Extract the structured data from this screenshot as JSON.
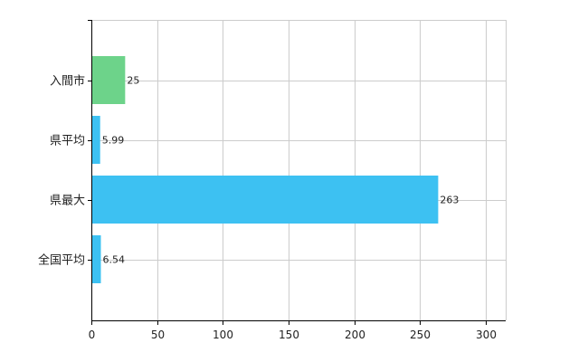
{
  "chart_data": {
    "type": "bar",
    "orientation": "horizontal",
    "categories": [
      "入間市",
      "県平均",
      "県最大",
      "全国平均"
    ],
    "values": [
      25,
      5.99,
      263,
      6.54
    ],
    "value_labels": [
      "25",
      "5.99",
      "263",
      "6.54"
    ],
    "bar_colors": [
      "#6dd38a",
      "#3dc1f2",
      "#3dc1f2",
      "#3dc1f2"
    ],
    "xlim": [
      0,
      315
    ],
    "xticks": [
      0,
      50,
      100,
      150,
      200,
      250,
      300
    ],
    "xtick_labels": [
      "0",
      "50",
      "100",
      "150",
      "200",
      "250",
      "300"
    ],
    "grid": true,
    "legend": "none"
  }
}
